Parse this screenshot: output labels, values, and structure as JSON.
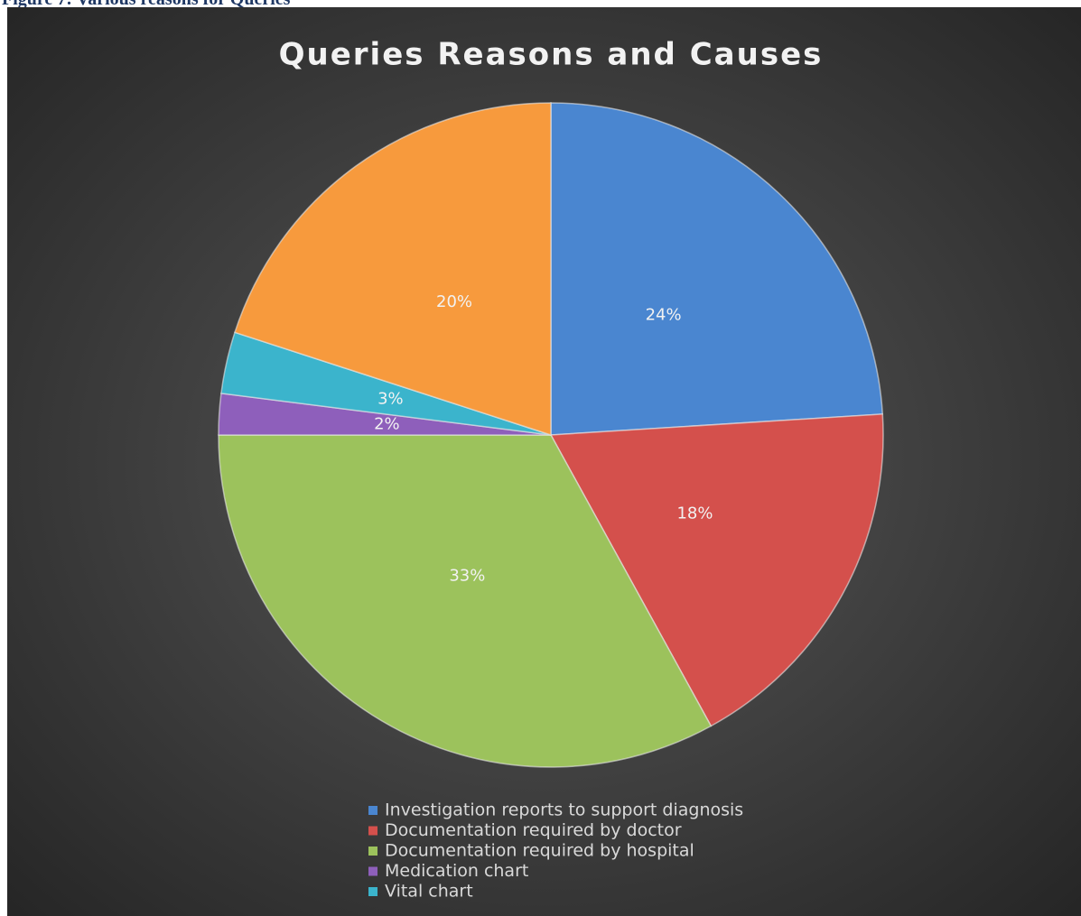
{
  "caption": "Figure 7: Various reasons for Queries",
  "chart_data": {
    "type": "pie",
    "title": "Queries Reasons and Causes",
    "categories": [
      "Investigation reports to support diagnosis",
      "Documentation required by doctor",
      "Documentation required by hospital",
      "Medication chart",
      "Vital chart",
      null
    ],
    "values": [
      24,
      18,
      33,
      2,
      3,
      20
    ],
    "value_labels": [
      "24%",
      "18%",
      "33%",
      "2%",
      "3%",
      "20%"
    ],
    "colors": [
      "#4a86d0",
      "#d4504c",
      "#9cc25c",
      "#8e5fbb",
      "#3bb4cc",
      "#f79a3d"
    ],
    "legend": "bottom"
  }
}
